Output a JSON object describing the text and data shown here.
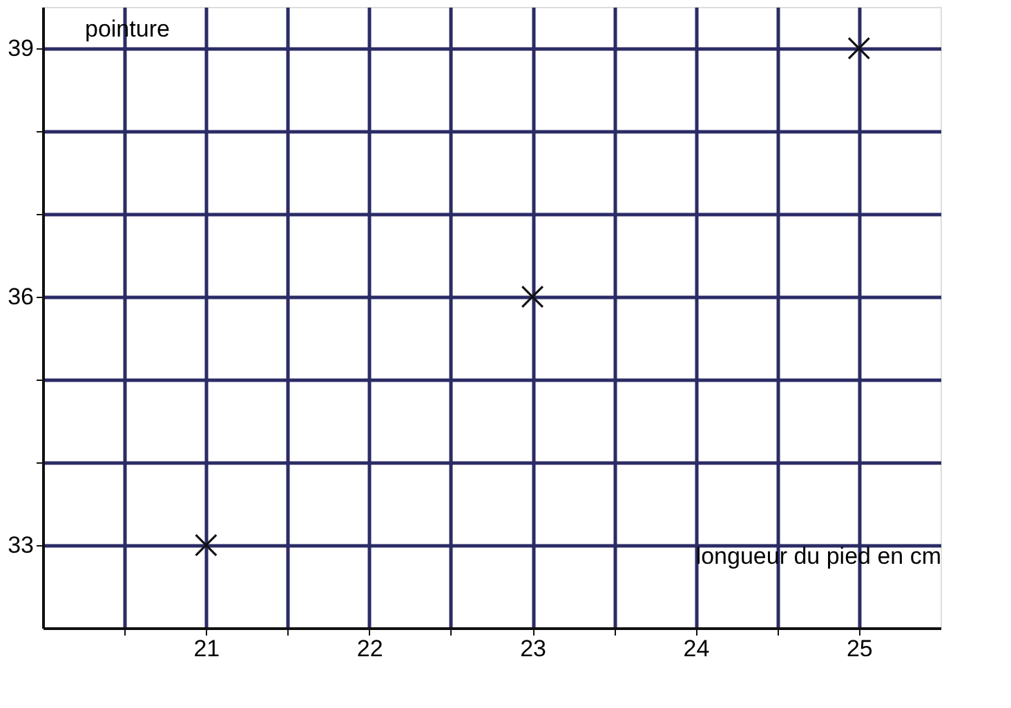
{
  "chart_data": {
    "type": "scatter",
    "xlabel": "longueur du pied en cm",
    "ylabel": "pointure",
    "x": [
      21,
      23,
      25
    ],
    "values": [
      33,
      36,
      39
    ],
    "color": "#111111",
    "marker": "cross",
    "xlim": [
      20,
      25.5
    ],
    "ylim": [
      32,
      39.5
    ],
    "xticks": [
      {
        "value": 20.5,
        "label": null
      },
      21,
      {
        "value": 21.5,
        "label": null
      },
      22,
      {
        "value": 22.5,
        "label": null
      },
      23,
      {
        "value": 23.5,
        "label": null
      },
      24,
      {
        "value": 24.5,
        "label": null
      },
      25
    ],
    "yticks": [
      33,
      {
        "value": 34,
        "label": null
      },
      {
        "value": 35,
        "label": null
      },
      36,
      {
        "value": 37,
        "label": null
      },
      {
        "value": 38,
        "label": null
      },
      39
    ],
    "grid": true,
    "legend": false
  }
}
